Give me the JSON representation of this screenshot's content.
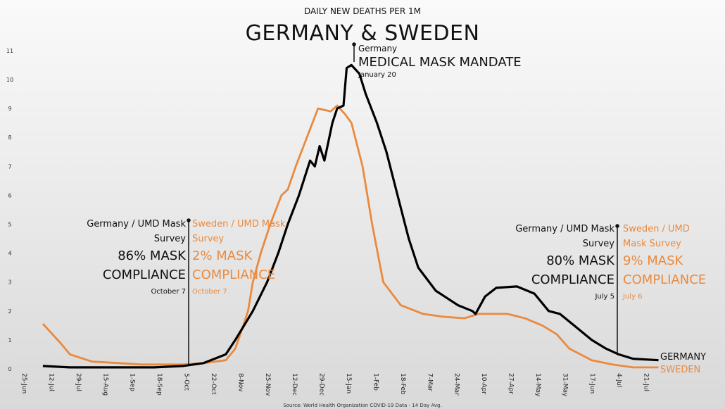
{
  "chart_data": {
    "type": "line",
    "subtitle": "DAILY NEW DEATHS PER 1M",
    "title": "GERMANY & SWEDEN",
    "source": "Source: World Health Organization COVID-19 Data - 14 Day Avg.",
    "x_unit": "days since 25-Jun-2020",
    "x_ticks": [
      "25-Jun",
      "12-Jul",
      "29-Jul",
      "15-Aug",
      "1-Sep",
      "18-Sep",
      "5-Oct",
      "22-Oct",
      "8-Nov",
      "25-Nov",
      "12-Dec",
      "29-Dec",
      "15-Jan",
      "1-Feb",
      "18-Feb",
      "7-Mar",
      "24-Mar",
      "10-Apr",
      "27-Apr",
      "14-May",
      "31-May",
      "17-Jun",
      "4-Jul",
      "21-Jul"
    ],
    "x_tick_step_days": 17,
    "xlim": [
      0,
      400
    ],
    "ylim": [
      0,
      11
    ],
    "y_ticks": [
      "0",
      "1",
      "2",
      "3",
      "4",
      "5",
      "6",
      "7",
      "8",
      "9",
      "10",
      "11"
    ],
    "grid": false,
    "series": [
      {
        "name": "GERMANY",
        "color": "#000000",
        "x": [
          11,
          28,
          81,
          99,
          112,
          126,
          132,
          143,
          152,
          159,
          165,
          172,
          179,
          182,
          185,
          188,
          193,
          196,
          200,
          202,
          205,
          210,
          214,
          221,
          227,
          234,
          241,
          247,
          258,
          272,
          281,
          283,
          289,
          296,
          309,
          320,
          329,
          336,
          345,
          356,
          365,
          373,
          382,
          398
        ],
        "y": [
          0.1,
          0.05,
          0.05,
          0.1,
          0.2,
          0.5,
          1,
          2,
          3,
          4,
          5,
          6,
          7.2,
          7,
          7.7,
          7.2,
          8.5,
          9,
          9.1,
          10.4,
          10.5,
          10.2,
          9.5,
          8.5,
          7.5,
          6,
          4.5,
          3.5,
          2.7,
          2.2,
          2,
          1.9,
          2.5,
          2.8,
          2.85,
          2.6,
          2,
          1.9,
          1.5,
          1,
          0.7,
          0.5,
          0.35,
          0.3
        ]
      },
      {
        "name": "SWEDEN",
        "color": "#e98a3f",
        "x": [
          11,
          22,
          28,
          42,
          59,
          73,
          99,
          112,
          126,
          132,
          137,
          140,
          143,
          148,
          154,
          161,
          165,
          170,
          177,
          184,
          192,
          196,
          201,
          205,
          212,
          218,
          225,
          236,
          250,
          263,
          276,
          285,
          303,
          314,
          325,
          334,
          342,
          356,
          369,
          382,
          398
        ],
        "y": [
          1.56,
          0.9,
          0.5,
          0.25,
          0.2,
          0.15,
          0.15,
          0.2,
          0.3,
          0.7,
          1.5,
          2,
          3,
          4,
          5,
          6,
          6.2,
          7,
          8,
          9,
          8.9,
          9.1,
          8.8,
          8.5,
          7,
          5,
          3,
          2.2,
          1.9,
          1.8,
          1.75,
          1.9,
          1.9,
          1.75,
          1.5,
          1.2,
          0.7,
          0.3,
          0.15,
          0.05,
          0.05
        ]
      }
    ],
    "annotations": {
      "oct_germany": {
        "line1": "Germany / UMD Mask",
        "line2": "Survey",
        "line3": "86% MASK",
        "line4": "COMPLIANCE",
        "date": "October 7"
      },
      "oct_sweden": {
        "line1": "Sweden / UMD Mask",
        "line2": "Survey",
        "line3": "2% MASK",
        "line4": "COMPLIANCE",
        "date": "October 7"
      },
      "jul_germany": {
        "line1": "Germany / UMD Mask",
        "line2": "Survey",
        "line3": "80% MASK",
        "line4": "COMPLIANCE",
        "date": "July 5"
      },
      "jul_sweden": {
        "line1": "Sweden / UMD",
        "line2": "Mask Survey",
        "line3": "9% MASK",
        "line4": "COMPLIANCE",
        "date": "July 6"
      },
      "jan": {
        "line1": "Germany",
        "line2": "MEDICAL MASK MANDATE",
        "date": "January 20"
      }
    }
  }
}
